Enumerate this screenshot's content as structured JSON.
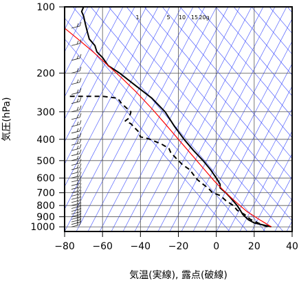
{
  "chart_data": {
    "type": "line",
    "title": "",
    "xlabel": "気温(実線), 露点(破線)",
    "ylabel": "気圧(hPa)",
    "xlim": [
      -80,
      40
    ],
    "ylim": [
      1050,
      100
    ],
    "y_scale": "log",
    "x_ticks": [
      "−80",
      "−60",
      "−40",
      "−20",
      "0",
      "20",
      "40"
    ],
    "x_tick_values": [
      -80,
      -60,
      -40,
      -20,
      0,
      20,
      40
    ],
    "y_ticks": [
      "100",
      "200",
      "300",
      "400",
      "500",
      "600",
      "700",
      "800",
      "900",
      "1000"
    ],
    "y_tick_values": [
      100,
      200,
      300,
      400,
      500,
      600,
      700,
      800,
      900,
      1000
    ],
    "mixing_ratio_labels": [
      "1",
      "5",
      "10",
      "15",
      "20g"
    ],
    "mixing_ratio_values": [
      1,
      5,
      10,
      15,
      20
    ],
    "grid": true,
    "series": [
      {
        "type": "line",
        "color": "#000000",
        "dash": "solid",
        "points": [
          [
            29,
            1000
          ],
          [
            20,
            960
          ],
          [
            17,
            930
          ],
          [
            14,
            880
          ],
          [
            13,
            850
          ],
          [
            11,
            800
          ],
          [
            7,
            730
          ],
          [
            5,
            700
          ],
          [
            2,
            665
          ],
          [
            2,
            640
          ],
          [
            0,
            600
          ],
          [
            -3,
            550
          ],
          [
            -7,
            500
          ],
          [
            -12,
            450
          ],
          [
            -17,
            400
          ],
          [
            -22,
            350
          ],
          [
            -27,
            300
          ],
          [
            -34,
            260
          ],
          [
            -42,
            230
          ],
          [
            -51,
            200
          ],
          [
            -57,
            185
          ],
          [
            -60,
            170
          ],
          [
            -63,
            160
          ],
          [
            -64,
            150
          ],
          [
            -67,
            140
          ],
          [
            -68,
            130
          ],
          [
            -69,
            120
          ],
          [
            -70,
            110
          ],
          [
            -71,
            105
          ],
          [
            -70,
            100
          ]
        ]
      },
      {
        "type": "line",
        "color": "#ff0000",
        "dash": "solid",
        "points": [
          [
            29,
            1000
          ],
          [
            23,
            930
          ],
          [
            16,
            850
          ],
          [
            11,
            780
          ],
          [
            5,
            700
          ],
          [
            -1,
            620
          ],
          [
            -7,
            540
          ],
          [
            -13,
            470
          ],
          [
            -20,
            400
          ],
          [
            -27,
            340
          ],
          [
            -34,
            290
          ],
          [
            -42,
            245
          ],
          [
            -50,
            210
          ],
          [
            -57,
            185
          ],
          [
            -65,
            160
          ],
          [
            -73,
            140
          ],
          [
            -80,
            125
          ]
        ]
      },
      {
        "type": "line",
        "color": "#000000",
        "dash": "dashed",
        "points": [
          [
            27,
            1000
          ],
          [
            22,
            960
          ],
          [
            18,
            925
          ],
          [
            15,
            880
          ],
          [
            11,
            840
          ],
          [
            9,
            800
          ],
          [
            5,
            760
          ],
          [
            2,
            720
          ],
          [
            -2,
            700
          ],
          [
            -4,
            670
          ],
          [
            -7,
            640
          ],
          [
            -10,
            610
          ],
          [
            -12,
            580
          ],
          [
            -14,
            550
          ],
          [
            -18,
            520
          ],
          [
            -21,
            490
          ],
          [
            -24,
            460
          ],
          [
            -25,
            440
          ],
          [
            -29,
            420
          ],
          [
            -32,
            410
          ],
          [
            -35,
            400
          ],
          [
            -37,
            395
          ],
          [
            -40,
            390
          ],
          [
            -41,
            370
          ],
          [
            -43,
            355
          ],
          [
            -45,
            340
          ],
          [
            -48,
            330
          ],
          [
            -46,
            320
          ],
          [
            -45,
            300
          ],
          [
            -47,
            290
          ],
          [
            -50,
            275
          ],
          [
            -52,
            260
          ],
          [
            -60,
            255
          ],
          [
            -69,
            255
          ],
          [
            -78,
            255
          ]
        ]
      }
    ],
    "wind_barbs": true
  }
}
